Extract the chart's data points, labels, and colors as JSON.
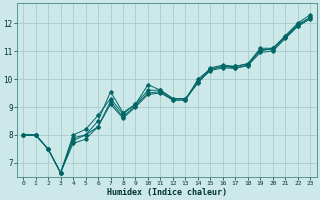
{
  "xlabel": "Humidex (Indice chaleur)",
  "ylabel": "",
  "bg_color": "#cce8e8",
  "grid_color": "#aacccc",
  "line_color": "#006666",
  "xlim": [
    -0.5,
    23.5
  ],
  "ylim": [
    6.5,
    12.7
  ],
  "xticks": [
    0,
    1,
    2,
    3,
    4,
    5,
    6,
    7,
    8,
    9,
    10,
    11,
    12,
    13,
    14,
    15,
    16,
    17,
    18,
    19,
    20,
    21,
    22,
    23
  ],
  "yticks": [
    7,
    8,
    9,
    10,
    11,
    12
  ],
  "series": [
    [
      8.0,
      8.0,
      7.5,
      6.65,
      7.9,
      8.0,
      8.5,
      9.55,
      8.8,
      9.1,
      9.8,
      9.6,
      9.3,
      9.3,
      9.9,
      10.4,
      10.5,
      10.45,
      10.55,
      11.1,
      11.1,
      11.55,
      12.0,
      12.3
    ],
    [
      8.0,
      8.0,
      7.5,
      6.65,
      7.8,
      8.0,
      8.3,
      9.2,
      8.65,
      9.05,
      9.5,
      9.55,
      9.25,
      9.25,
      10.0,
      10.35,
      10.45,
      10.4,
      10.5,
      11.05,
      11.05,
      11.5,
      11.9,
      12.2
    ],
    [
      8.0,
      8.0,
      7.5,
      6.65,
      8.0,
      8.2,
      8.7,
      9.3,
      8.75,
      9.1,
      9.6,
      9.6,
      9.3,
      9.3,
      9.85,
      10.35,
      10.45,
      10.45,
      10.55,
      11.0,
      11.1,
      11.5,
      11.95,
      12.2
    ],
    [
      8.0,
      8.0,
      7.5,
      6.65,
      7.7,
      7.85,
      8.3,
      9.1,
      8.6,
      9.0,
      9.45,
      9.5,
      9.25,
      9.25,
      9.9,
      10.3,
      10.4,
      10.38,
      10.48,
      10.95,
      11.0,
      11.45,
      11.88,
      12.15
    ]
  ]
}
